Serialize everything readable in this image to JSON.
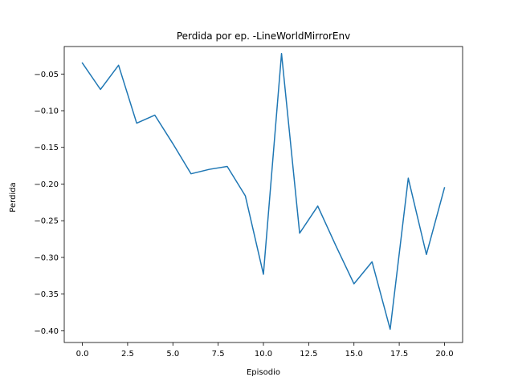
{
  "chart_data": {
    "type": "line",
    "title": "Perdida por ep. -LineWorldMirrorEnv",
    "xlabel": "Episodio",
    "ylabel": "Perdida",
    "xlim": [
      -1.0,
      21.0
    ],
    "ylim": [
      -0.416,
      -0.0125
    ],
    "x_ticks": [
      0.0,
      2.5,
      5.0,
      7.5,
      10.0,
      12.5,
      15.0,
      17.5,
      20.0
    ],
    "x_tick_labels": [
      "0.0",
      "2.5",
      "5.0",
      "7.5",
      "10.0",
      "12.5",
      "15.0",
      "17.5",
      "20.0"
    ],
    "y_ticks": [
      -0.05,
      -0.1,
      -0.15,
      -0.2,
      -0.25,
      -0.3,
      -0.35,
      -0.4
    ],
    "y_tick_labels": [
      "−0.05",
      "−0.10",
      "−0.15",
      "−0.20",
      "−0.25",
      "−0.30",
      "−0.35",
      "−0.40"
    ],
    "grid": false,
    "series": [
      {
        "color": "#1f77b4",
        "x": [
          0,
          1,
          2,
          3,
          4,
          5,
          6,
          7,
          8,
          9,
          10,
          11,
          12,
          13,
          14,
          15,
          16,
          17,
          18,
          19,
          20
        ],
        "values": [
          -0.035,
          -0.071,
          -0.038,
          -0.117,
          -0.106,
          -0.145,
          -0.186,
          -0.18,
          -0.176,
          -0.216,
          -0.323,
          -0.022,
          -0.267,
          -0.23,
          -0.284,
          -0.336,
          -0.306,
          -0.398,
          -0.192,
          -0.296,
          -0.205
        ]
      }
    ]
  }
}
